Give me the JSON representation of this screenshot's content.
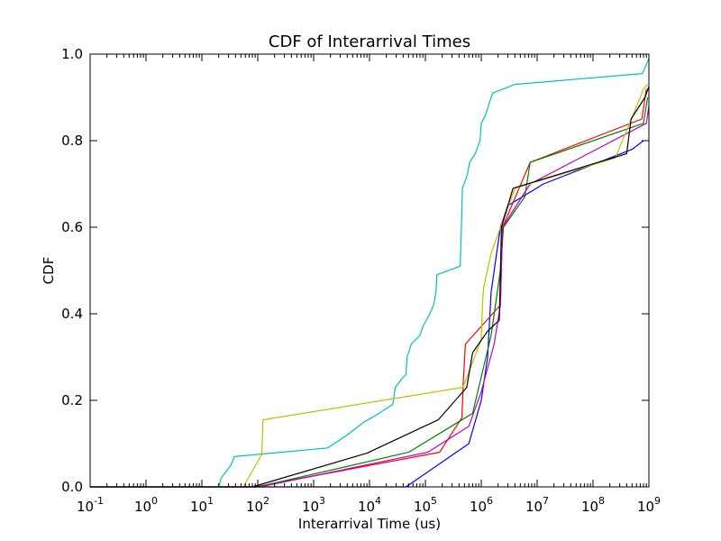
{
  "chart_data": {
    "type": "line",
    "title": "CDF of Interarrival Times",
    "xlabel": "Interarrival Time (us)",
    "ylabel": "CDF",
    "xscale": "log",
    "xlim": [
      0.1,
      1000000000
    ],
    "ylim": [
      0,
      1
    ],
    "xticks": [
      0.1,
      1,
      10,
      100,
      1000,
      10000,
      100000,
      1000000,
      10000000,
      100000000,
      1000000000
    ],
    "xtick_labels": [
      {
        "base": "10",
        "exp": "-1"
      },
      {
        "base": "10",
        "exp": "0"
      },
      {
        "base": "10",
        "exp": "1"
      },
      {
        "base": "10",
        "exp": "2"
      },
      {
        "base": "10",
        "exp": "3"
      },
      {
        "base": "10",
        "exp": "4"
      },
      {
        "base": "10",
        "exp": "5"
      },
      {
        "base": "10",
        "exp": "6"
      },
      {
        "base": "10",
        "exp": "7"
      },
      {
        "base": "10",
        "exp": "8"
      },
      {
        "base": "10",
        "exp": "9"
      }
    ],
    "yticks": [
      0,
      0.2,
      0.4,
      0.6,
      0.8,
      1.0
    ],
    "ytick_labels": [
      "0.0",
      "0.2",
      "0.4",
      "0.6",
      "0.8",
      "1.0"
    ],
    "grid": false,
    "legend": "none",
    "series": [
      {
        "color": "#0000ff",
        "points": [
          [
            0.1,
            0
          ],
          [
            45000,
            0
          ],
          [
            600000,
            0.1
          ],
          [
            1000000,
            0.2
          ],
          [
            1300000,
            0.3
          ],
          [
            1500000,
            0.45
          ],
          [
            2200000,
            0.6
          ],
          [
            3000000,
            0.65
          ],
          [
            13000000,
            0.7
          ],
          [
            500000000,
            0.78
          ],
          [
            800000000,
            0.8
          ]
        ]
      },
      {
        "color": "#ff0000",
        "points": [
          [
            0.1,
            0
          ],
          [
            90,
            0
          ],
          [
            180000,
            0.08
          ],
          [
            450000,
            0.16
          ],
          [
            480000,
            0.25
          ],
          [
            520000,
            0.33
          ],
          [
            2200000,
            0.42
          ],
          [
            2400000,
            0.6
          ],
          [
            7500000,
            0.75
          ],
          [
            750000000,
            0.85
          ],
          [
            900000000,
            0.92
          ]
        ]
      },
      {
        "color": "#008000",
        "points": [
          [
            0.1,
            0
          ],
          [
            100,
            0
          ],
          [
            50000,
            0.08
          ],
          [
            700000,
            0.17
          ],
          [
            1500000,
            0.35
          ],
          [
            2200000,
            0.5
          ],
          [
            2500000,
            0.6
          ],
          [
            6000000,
            0.67
          ],
          [
            7500000,
            0.75
          ],
          [
            800000000,
            0.84
          ],
          [
            950000000,
            0.9
          ]
        ]
      },
      {
        "color": "#bf00bf",
        "points": [
          [
            0.1,
            0
          ],
          [
            110,
            0
          ],
          [
            110000,
            0.08
          ],
          [
            600000,
            0.14
          ],
          [
            1000000,
            0.22
          ],
          [
            1700000,
            0.33
          ],
          [
            2200000,
            0.42
          ],
          [
            2400000,
            0.6
          ],
          [
            7500000,
            0.7
          ],
          [
            900000000,
            0.84
          ],
          [
            1000000000,
            0.88
          ]
        ]
      },
      {
        "color": "#00bfbf",
        "points": [
          [
            0.1,
            0
          ],
          [
            20,
            0
          ],
          [
            22,
            0.02
          ],
          [
            33,
            0.05
          ],
          [
            38,
            0.07
          ],
          [
            1800,
            0.09
          ],
          [
            4000,
            0.12
          ],
          [
            8000,
            0.15
          ],
          [
            11000,
            0.16
          ],
          [
            26000,
            0.19
          ],
          [
            29000,
            0.23
          ],
          [
            38000,
            0.25
          ],
          [
            45000,
            0.26
          ],
          [
            47000,
            0.3
          ],
          [
            56000,
            0.33
          ],
          [
            80000,
            0.35
          ],
          [
            90000,
            0.37
          ],
          [
            120000,
            0.4
          ],
          [
            140000,
            0.42
          ],
          [
            155000,
            0.45
          ],
          [
            160000,
            0.49
          ],
          [
            420000,
            0.51
          ],
          [
            430000,
            0.55
          ],
          [
            460000,
            0.69
          ],
          [
            560000,
            0.72
          ],
          [
            620000,
            0.75
          ],
          [
            780000,
            0.77
          ],
          [
            950000,
            0.8
          ],
          [
            1000000,
            0.84
          ],
          [
            1200000,
            0.86
          ],
          [
            1500000,
            0.9
          ],
          [
            1600000,
            0.91
          ],
          [
            4000000,
            0.93
          ],
          [
            770000000,
            0.955
          ],
          [
            1000000000,
            0.99
          ]
        ]
      },
      {
        "color": "#bfbf00",
        "points": [
          [
            0.1,
            0
          ],
          [
            55,
            0
          ],
          [
            118,
            0.075
          ],
          [
            124,
            0.155
          ],
          [
            470000,
            0.23
          ],
          [
            1000000,
            0.34
          ],
          [
            1050000,
            0.42
          ],
          [
            1100000,
            0.46
          ],
          [
            1500000,
            0.54
          ],
          [
            4000000,
            0.69
          ],
          [
            250000000,
            0.76
          ],
          [
            700000000,
            0.9
          ],
          [
            800000000,
            0.92
          ],
          [
            950000000,
            0.93
          ]
        ]
      },
      {
        "color": "#000000",
        "points": [
          [
            0.1,
            0
          ],
          [
            80,
            0
          ],
          [
            9000,
            0.078
          ],
          [
            170000,
            0.155
          ],
          [
            550000,
            0.23
          ],
          [
            700000,
            0.31
          ],
          [
            1300000,
            0.36
          ],
          [
            2100000,
            0.385
          ],
          [
            2300000,
            0.6
          ],
          [
            3700000,
            0.69
          ],
          [
            400000000,
            0.77
          ],
          [
            480000000,
            0.85
          ],
          [
            850000000,
            0.9
          ],
          [
            1000000000,
            0.925
          ]
        ]
      }
    ]
  }
}
